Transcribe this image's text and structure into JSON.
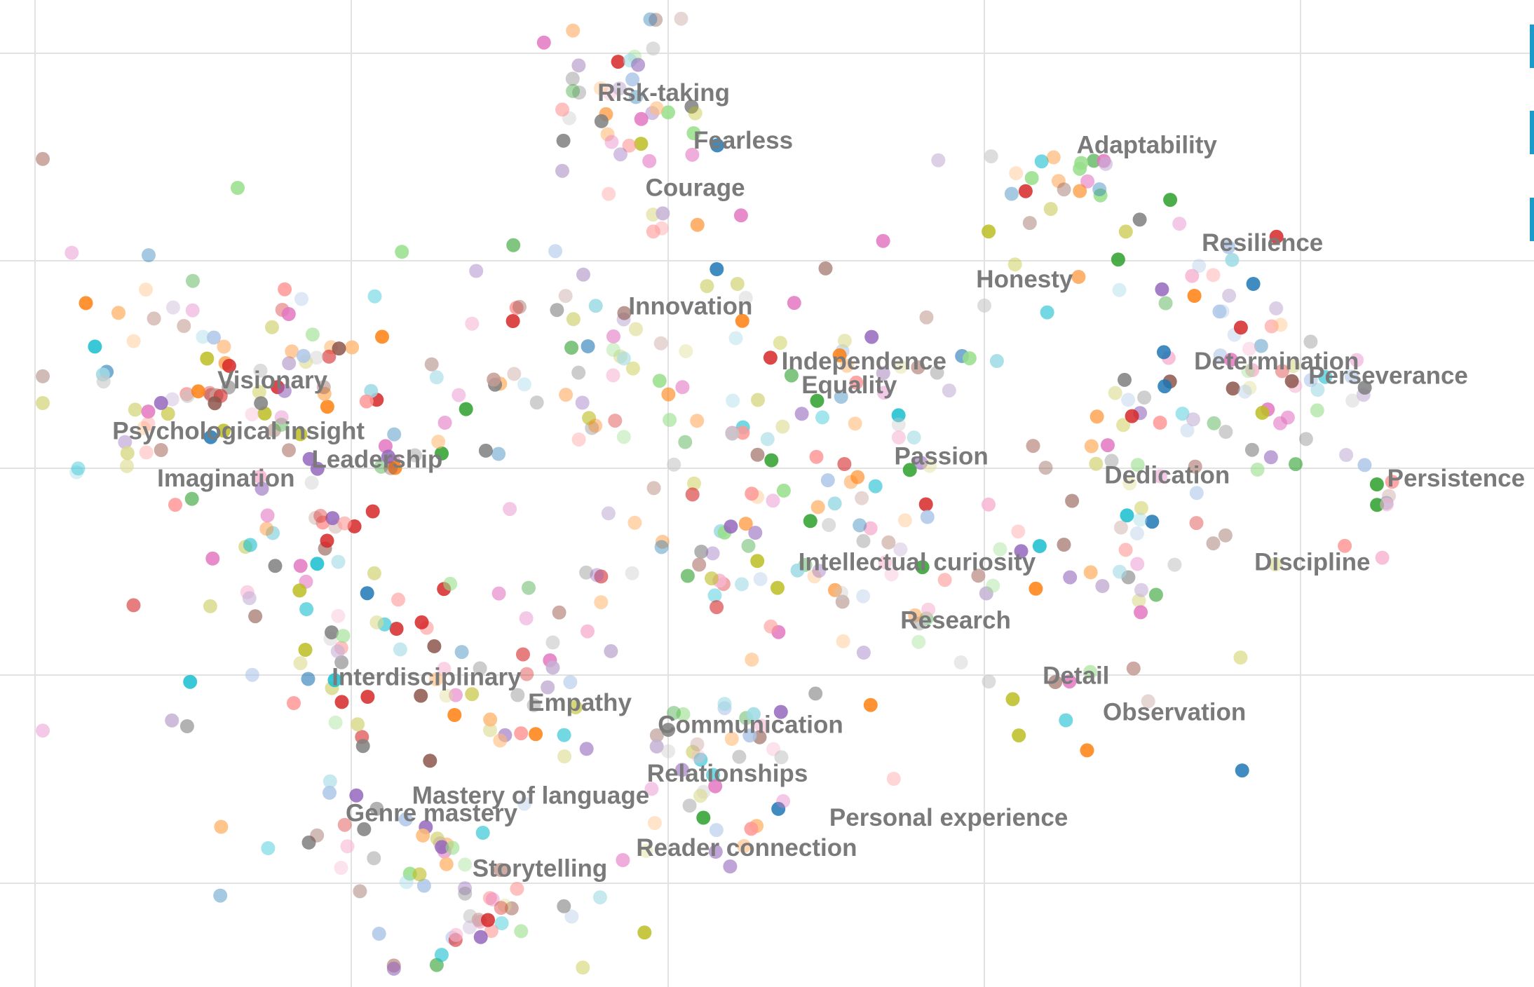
{
  "chart_data": {
    "type": "scatter",
    "title": "",
    "xlabel": "",
    "ylabel": "",
    "xlim": [
      0,
      9.7
    ],
    "ylim": [
      0,
      6.25
    ],
    "grid": true,
    "legend": "none",
    "palette": [
      "#d62728",
      "#1f77b4",
      "#2ca02c",
      "#ff7f0e",
      "#9467bd",
      "#8c564b",
      "#e377c2",
      "#7f7f7f",
      "#bcbd22",
      "#17becf",
      "#aec7e8",
      "#ffbb78",
      "#98df8a",
      "#ff9896",
      "#c5b0d5",
      "#c49c94",
      "#f7b6d2",
      "#c7c7c7",
      "#dbdb8d",
      "#9edae5"
    ],
    "labels": [
      {
        "text": "Risk-taking",
        "x": 3.64,
        "y": 5.61
      },
      {
        "text": "Fearless",
        "x": 4.26,
        "y": 5.31
      },
      {
        "text": "Courage",
        "x": 3.95,
        "y": 5.01
      },
      {
        "text": "Adaptability",
        "x": 6.74,
        "y": 5.28
      },
      {
        "text": "Resilience",
        "x": 7.55,
        "y": 4.66
      },
      {
        "text": "Honesty",
        "x": 6.09,
        "y": 4.43
      },
      {
        "text": "Innovation",
        "x": 3.84,
        "y": 4.26
      },
      {
        "text": "Independence",
        "x": 4.83,
        "y": 3.91
      },
      {
        "text": "Equality",
        "x": 4.96,
        "y": 3.76
      },
      {
        "text": "Determination",
        "x": 7.5,
        "y": 3.91
      },
      {
        "text": "Perseverance",
        "x": 8.24,
        "y": 3.82
      },
      {
        "text": "Visionary",
        "x": 1.18,
        "y": 3.79
      },
      {
        "text": "Psychological insight",
        "x": 0.5,
        "y": 3.47
      },
      {
        "text": "Leadership",
        "x": 1.79,
        "y": 3.29
      },
      {
        "text": "Passion",
        "x": 5.56,
        "y": 3.31
      },
      {
        "text": "Dedication",
        "x": 6.92,
        "y": 3.19
      },
      {
        "text": "Persistence",
        "x": 8.75,
        "y": 3.17
      },
      {
        "text": "Imagination",
        "x": 0.79,
        "y": 3.17
      },
      {
        "text": "Intellectual curiosity",
        "x": 4.94,
        "y": 2.64
      },
      {
        "text": "Discipline",
        "x": 7.89,
        "y": 2.64
      },
      {
        "text": "Research",
        "x": 5.6,
        "y": 2.27
      },
      {
        "text": "Detail",
        "x": 6.52,
        "y": 1.92
      },
      {
        "text": "Interdisciplinary",
        "x": 1.92,
        "y": 1.91
      },
      {
        "text": "Empathy",
        "x": 3.19,
        "y": 1.75
      },
      {
        "text": "Observation",
        "x": 6.91,
        "y": 1.69
      },
      {
        "text": "Communication",
        "x": 4.03,
        "y": 1.61
      },
      {
        "text": "Relationships",
        "x": 3.96,
        "y": 1.3
      },
      {
        "text": "Mastery of language",
        "x": 2.44,
        "y": 1.16
      },
      {
        "text": "Genre mastery",
        "x": 2.01,
        "y": 1.05
      },
      {
        "text": "Personal experience",
        "x": 5.14,
        "y": 1.02
      },
      {
        "text": "Reader connection",
        "x": 3.89,
        "y": 0.83
      },
      {
        "text": "Storytelling",
        "x": 2.83,
        "y": 0.7
      }
    ],
    "point_clusters": [
      {
        "label": "Risk-taking",
        "cx": 3.8,
        "cy": 5.6,
        "sx": 0.28,
        "sy": 0.26,
        "n": 40
      },
      {
        "label": "Adaptability",
        "cx": 6.65,
        "cy": 5.08,
        "sx": 0.25,
        "sy": 0.14,
        "n": 22
      },
      {
        "label": "Resilience",
        "cx": 7.65,
        "cy": 4.4,
        "sx": 0.25,
        "sy": 0.22,
        "n": 20
      },
      {
        "label": "Honesty",
        "cx": 6.0,
        "cy": 4.25,
        "sx": 0.55,
        "sy": 0.3,
        "n": 14
      },
      {
        "label": "Innovation",
        "cx": 3.85,
        "cy": 4.05,
        "sx": 0.62,
        "sy": 0.42,
        "n": 70
      },
      {
        "label": "Independence",
        "cx": 5.35,
        "cy": 3.8,
        "sx": 0.35,
        "sy": 0.18,
        "n": 10
      },
      {
        "label": "Determination",
        "cx": 7.5,
        "cy": 3.7,
        "sx": 0.33,
        "sy": 0.28,
        "n": 35
      },
      {
        "label": "Perseverance",
        "cx": 8.3,
        "cy": 3.7,
        "sx": 0.22,
        "sy": 0.22,
        "n": 18
      },
      {
        "label": "Visionary",
        "cx": 1.1,
        "cy": 3.9,
        "sx": 0.7,
        "sy": 0.45,
        "n": 85
      },
      {
        "label": "Leadership",
        "cx": 1.95,
        "cy": 2.95,
        "sx": 0.45,
        "sy": 0.4,
        "n": 40
      },
      {
        "label": "Passion",
        "cx": 5.4,
        "cy": 3.15,
        "sx": 0.5,
        "sy": 0.3,
        "n": 18
      },
      {
        "label": "Dedication",
        "cx": 7.05,
        "cy": 2.9,
        "sx": 0.45,
        "sy": 0.38,
        "n": 35
      },
      {
        "label": "Persistence",
        "cx": 8.6,
        "cy": 3.0,
        "sx": 0.15,
        "sy": 0.12,
        "n": 8
      },
      {
        "label": "Intellectual curiosity",
        "cx": 4.4,
        "cy": 2.75,
        "sx": 0.65,
        "sy": 0.35,
        "n": 55
      },
      {
        "label": "Research",
        "cx": 5.7,
        "cy": 2.35,
        "sx": 0.7,
        "sy": 0.3,
        "n": 18
      },
      {
        "label": "Interdisciplinary",
        "cx": 2.2,
        "cy": 2.15,
        "sx": 0.65,
        "sy": 0.35,
        "n": 50
      },
      {
        "label": "Empathy",
        "cx": 3.15,
        "cy": 1.75,
        "sx": 0.25,
        "sy": 0.18,
        "n": 15
      },
      {
        "label": "Communication",
        "cx": 4.35,
        "cy": 1.6,
        "sx": 0.45,
        "sy": 0.2,
        "n": 22
      },
      {
        "label": "Observation",
        "cx": 6.7,
        "cy": 1.8,
        "sx": 0.3,
        "sy": 0.15,
        "n": 8
      },
      {
        "label": "Relationships",
        "cx": 4.35,
        "cy": 1.3,
        "sx": 0.2,
        "sy": 0.12,
        "n": 10
      },
      {
        "label": "Genre mastery",
        "cx": 2.1,
        "cy": 1.0,
        "sx": 0.55,
        "sy": 0.2,
        "n": 18
      },
      {
        "label": "Reader connection",
        "cx": 4.35,
        "cy": 0.95,
        "sx": 0.35,
        "sy": 0.1,
        "n": 8
      },
      {
        "label": "Storytelling",
        "cx": 2.85,
        "cy": 0.55,
        "sx": 0.4,
        "sy": 0.25,
        "n": 45
      },
      {
        "label": "Scattered",
        "cx": 4.5,
        "cy": 3.2,
        "sx": 2.2,
        "sy": 1.3,
        "n": 40
      }
    ],
    "point_opacity_levels": [
      0.85,
      0.6,
      0.4
    ]
  }
}
